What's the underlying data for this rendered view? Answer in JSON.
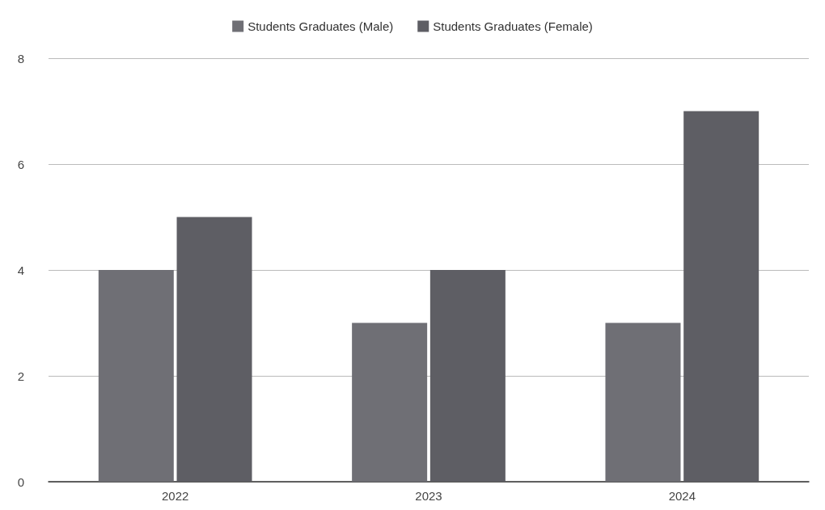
{
  "chart_data": {
    "type": "bar",
    "categories": [
      "2022",
      "2023",
      "2024"
    ],
    "series": [
      {
        "name": "Students Graduates (Male)",
        "color": "#6f6f75",
        "values": [
          4,
          3,
          3
        ]
      },
      {
        "name": "Students Graduates (Female)",
        "color": "#5e5e64",
        "values": [
          5,
          4,
          7
        ]
      }
    ],
    "ylim": [
      0,
      8
    ],
    "yticks": [
      0,
      2,
      4,
      6,
      8
    ],
    "grid": "y",
    "legend": "top"
  }
}
